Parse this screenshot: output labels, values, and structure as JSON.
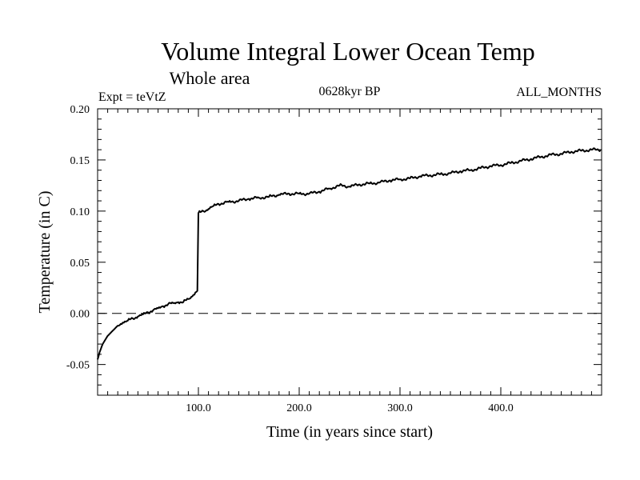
{
  "chart_data": {
    "type": "line",
    "title": "Volume Integral Lower Ocean Temp",
    "subtitle": "Whole area",
    "experiment_label": "Expt = teVtZ",
    "period_label": "0628kyr BP",
    "months_label": "ALL_MONTHS",
    "xlabel": "Time (in years since start)",
    "ylabel": "Temperature (in C)",
    "xlim": [
      0,
      500
    ],
    "ylim": [
      -0.08,
      0.2
    ],
    "x_ticks": [
      100,
      200,
      300,
      400
    ],
    "x_tick_labels": [
      "100.0",
      "200.0",
      "300.0",
      "400.0"
    ],
    "y_ticks": [
      -0.05,
      0.0,
      0.05,
      0.1,
      0.15,
      0.2
    ],
    "y_tick_labels": [
      "-0.05",
      "0.00",
      "0.05",
      "0.10",
      "0.15",
      "0.20"
    ],
    "reference_line": {
      "y": 0.0,
      "style": "dashed"
    },
    "grid": false,
    "series": [
      {
        "x": [
          0,
          2,
          5,
          10,
          15,
          20,
          25,
          30,
          35,
          40,
          45,
          50,
          55,
          60,
          65,
          70,
          75,
          80,
          85,
          90,
          95,
          99,
          100,
          102,
          105,
          110,
          115,
          120,
          130,
          140,
          150,
          160,
          170,
          180,
          190,
          200,
          210,
          220,
          230,
          240,
          250,
          260,
          270,
          280,
          290,
          300,
          310,
          320,
          330,
          340,
          350,
          360,
          370,
          380,
          390,
          400,
          410,
          420,
          430,
          440,
          450,
          460,
          470,
          480,
          490,
          499
        ],
        "y": [
          -0.045,
          -0.038,
          -0.03,
          -0.022,
          -0.017,
          -0.012,
          -0.009,
          -0.007,
          -0.005,
          -0.003,
          -0.001,
          0.001,
          0.003,
          0.005,
          0.007,
          0.009,
          0.01,
          0.011,
          0.011,
          0.014,
          0.018,
          0.022,
          0.098,
          0.099,
          0.1,
          0.102,
          0.105,
          0.107,
          0.109,
          0.11,
          0.112,
          0.113,
          0.114,
          0.116,
          0.117,
          0.117,
          0.117,
          0.119,
          0.122,
          0.125,
          0.124,
          0.126,
          0.127,
          0.128,
          0.13,
          0.131,
          0.132,
          0.134,
          0.135,
          0.136,
          0.137,
          0.139,
          0.14,
          0.142,
          0.144,
          0.145,
          0.147,
          0.149,
          0.151,
          0.153,
          0.155,
          0.156,
          0.158,
          0.159,
          0.16,
          0.16
        ]
      }
    ]
  }
}
